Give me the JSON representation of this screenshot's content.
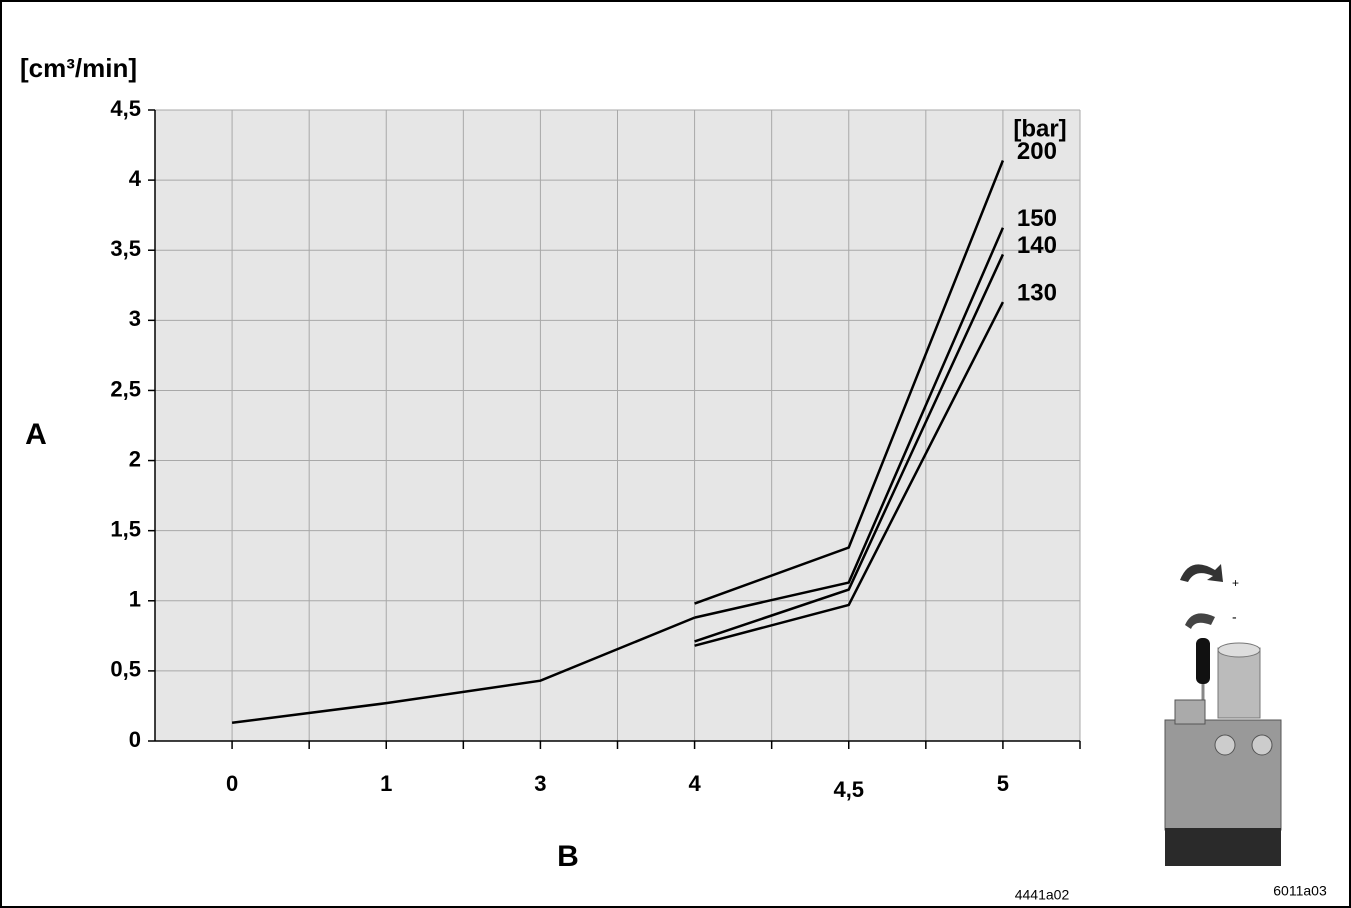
{
  "chart_data": {
    "type": "line",
    "y_unit": "[cm³/min]",
    "y_label": "A",
    "x_label": "B",
    "legend_title": "[bar]",
    "categories": [
      "0",
      "1",
      "3",
      "4",
      "4,5",
      "5"
    ],
    "series": [
      {
        "color": "#000000",
        "values": [
          0.13,
          0.27,
          0.43,
          0.88,
          null,
          null
        ]
      },
      {
        "name": "200",
        "color": "#000000",
        "values": [
          null,
          null,
          null,
          0.98,
          1.38,
          4.14
        ]
      },
      {
        "name": "150",
        "color": "#000000",
        "values": [
          null,
          null,
          null,
          0.88,
          1.13,
          3.66
        ]
      },
      {
        "name": "140",
        "color": "#000000",
        "values": [
          null,
          null,
          null,
          0.71,
          1.08,
          3.47
        ]
      },
      {
        "name": "130",
        "color": "#000000",
        "values": [
          null,
          null,
          null,
          0.68,
          0.97,
          3.13
        ]
      }
    ],
    "ylim": [
      0,
      4.5
    ],
    "yticks": [
      0,
      {
        "value": 0.5,
        "label": "0,5"
      },
      1,
      {
        "value": 1.5,
        "label": "1,5"
      },
      2,
      {
        "value": 2.5,
        "label": "2,5"
      },
      3,
      {
        "value": 3.5,
        "label": "3,5"
      },
      4,
      {
        "value": 4.5,
        "label": "4,5"
      }
    ],
    "grid": true
  },
  "figure_codes": [
    "4441a02",
    "6011a03"
  ],
  "device_labels": {
    "plus": "+",
    "minus": "-"
  }
}
